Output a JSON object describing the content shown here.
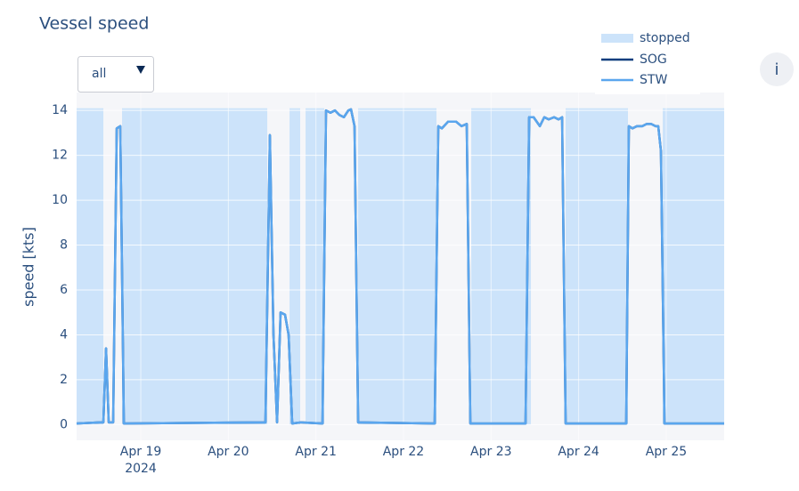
{
  "chart_data": {
    "type": "line",
    "title": "Vessel speed",
    "dropdown": "all",
    "info_button": "i",
    "ylabel": "speed [kts]",
    "x": [
      "2024-04-18T06:25",
      "2024-04-18T12:46",
      "2024-04-18T13:45",
      "2024-04-18T14:29",
      "2024-04-18T15:13",
      "2024-04-18T16:26",
      "2024-04-18T17:25",
      "2024-04-18T18:23",
      "2024-04-18T19:22",
      "2024-04-20T10:10",
      "2024-04-20T11:23",
      "2024-04-20T12:22",
      "2024-04-20T13:21",
      "2024-04-20T14:19",
      "2024-04-20T15:32",
      "2024-04-20T16:31",
      "2024-04-20T17:30",
      "2024-04-20T19:56",
      "2024-04-21T01:48",
      "2024-04-21T02:46",
      "2024-04-21T03:59",
      "2024-04-21T05:13",
      "2024-04-21T06:26",
      "2024-04-21T07:40",
      "2024-04-21T08:53",
      "2024-04-21T09:37",
      "2024-04-21T10:35",
      "2024-04-21T11:34",
      "2024-04-22T08:33",
      "2024-04-22T09:32",
      "2024-04-22T10:30",
      "2024-04-22T12:13",
      "2024-04-22T14:25",
      "2024-04-22T15:53",
      "2024-04-22T17:20",
      "2024-04-22T18:19",
      "2024-04-23T09:27",
      "2024-04-23T10:26",
      "2024-04-23T11:39",
      "2024-04-23T13:22",
      "2024-04-23T14:35",
      "2024-04-23T15:48",
      "2024-04-23T17:16",
      "2024-04-23T18:29",
      "2024-04-23T19:28",
      "2024-04-23T20:26",
      "2024-04-24T13:02",
      "2024-04-24T13:46",
      "2024-04-24T14:44",
      "2024-04-24T15:58",
      "2024-04-24T17:26",
      "2024-04-24T18:39",
      "2024-04-24T19:52",
      "2024-04-24T21:05",
      "2024-04-24T21:49",
      "2024-04-24T22:33",
      "2024-04-24T23:32",
      "2024-04-25T15:53"
    ],
    "series": [
      {
        "name": "SOG",
        "color": "#0b3d7e",
        "values": [
          0.05,
          0.1,
          0.1,
          3.4,
          0.1,
          0.1,
          13.2,
          13.3,
          0.05,
          0.1,
          12.9,
          4,
          0.1,
          5,
          4.9,
          4,
          0.05,
          0.1,
          0.05,
          14,
          13.9,
          14,
          13.8,
          13.7,
          14,
          14.05,
          13.3,
          0.1,
          0.05,
          13.3,
          13.2,
          13.5,
          13.5,
          13.3,
          13.4,
          0.05,
          0.05,
          13.7,
          13.7,
          13.3,
          13.7,
          13.6,
          13.7,
          13.6,
          13.7,
          0.05,
          0.05,
          13.3,
          13.2,
          13.3,
          13.3,
          13.4,
          13.4,
          13.3,
          13.3,
          12.2,
          0.05,
          0.05
        ]
      },
      {
        "name": "STW",
        "color": "#5aa6ee",
        "values": [
          0.05,
          0.1,
          0.1,
          3.4,
          0.1,
          0.1,
          13.2,
          13.3,
          0.05,
          0.1,
          12.9,
          4,
          0.1,
          5,
          4.9,
          4,
          0.05,
          0.1,
          0.05,
          14,
          13.9,
          14,
          13.8,
          13.7,
          14,
          14.05,
          13.3,
          0.1,
          0.05,
          13.3,
          13.2,
          13.5,
          13.5,
          13.3,
          13.4,
          0.05,
          0.05,
          13.7,
          13.7,
          13.3,
          13.7,
          13.6,
          13.7,
          13.6,
          13.7,
          0.05,
          0.05,
          13.3,
          13.2,
          13.3,
          13.3,
          13.4,
          13.4,
          13.3,
          13.3,
          12.2,
          0.05,
          0.05
        ]
      }
    ],
    "stopped": {
      "name": "stopped",
      "color": "#cce3fa",
      "top": 14.1,
      "intervals": [
        {
          "start": "2024-04-18T06:25",
          "end": "2024-04-18T13:45"
        },
        {
          "start": "2024-04-18T18:52",
          "end": "2024-04-20T10:40"
        },
        {
          "start": "2024-04-20T16:46",
          "end": "2024-04-20T19:41"
        },
        {
          "start": "2024-04-20T21:10",
          "end": "2024-04-21T02:17"
        },
        {
          "start": "2024-04-21T11:34",
          "end": "2024-04-22T09:02"
        },
        {
          "start": "2024-04-22T18:34",
          "end": "2024-04-23T10:55"
        },
        {
          "start": "2024-04-23T20:26",
          "end": "2024-04-24T13:31"
        },
        {
          "start": "2024-04-24T23:02",
          "end": "2024-04-25T15:53"
        }
      ]
    },
    "xlim": [
      "2024-04-18T06:25",
      "2024-04-25T15:53"
    ],
    "xticks": [
      {
        "value": "2024-04-19T00:00",
        "label": "Apr 19"
      },
      {
        "value": "2024-04-20T00:00",
        "label": "Apr 20"
      },
      {
        "value": "2024-04-21T00:00",
        "label": "Apr 21"
      },
      {
        "value": "2024-04-22T00:00",
        "label": "Apr 22"
      },
      {
        "value": "2024-04-23T00:00",
        "label": "Apr 23"
      },
      {
        "value": "2024-04-24T00:00",
        "label": "Apr 24"
      },
      {
        "value": "2024-04-25T00:00",
        "label": "Apr 25"
      }
    ],
    "xtick_year": "2024",
    "ylim": [
      -0.7,
      14.8
    ],
    "yticks": [
      0,
      2,
      4,
      6,
      8,
      10,
      12,
      14
    ],
    "grid": true,
    "legend": "top-right"
  }
}
